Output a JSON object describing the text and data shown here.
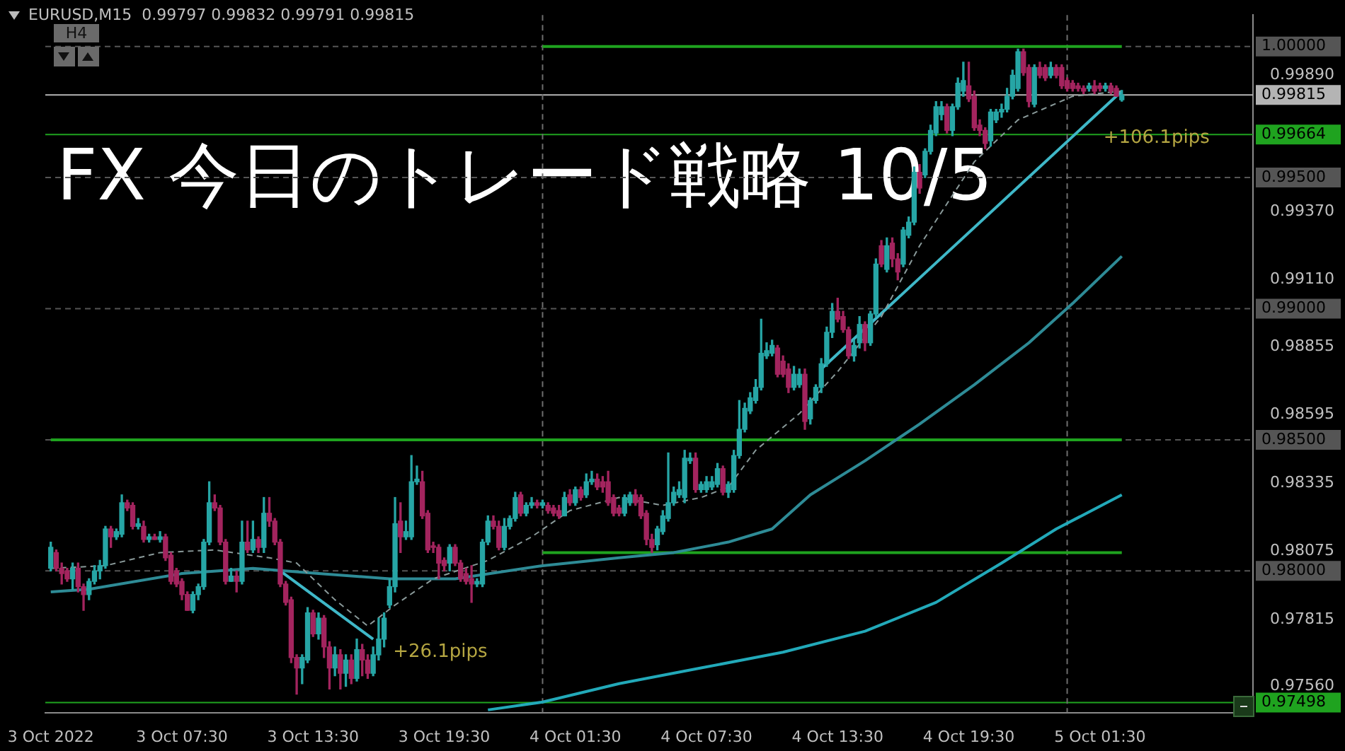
{
  "chart_data": {
    "type": "candlestick",
    "title": "FX 今日のトレード戦略 10/5",
    "subtitle": "EURUSD,M15  0.99797 0.99832 0.99791 0.99815",
    "x": [
      "2022-10-03T01:30",
      "2022-10-03T01:45",
      "2022-10-03T02:00",
      "2022-10-03T02:15",
      "2022-10-03T02:30",
      "2022-10-03T02:45",
      "2022-10-03T03:00",
      "2022-10-03T03:15",
      "2022-10-03T03:30",
      "2022-10-03T03:45",
      "2022-10-03T04:00",
      "2022-10-03T04:15",
      "2022-10-03T04:30",
      "2022-10-03T04:45",
      "2022-10-03T05:00",
      "2022-10-03T05:15",
      "2022-10-03T05:30",
      "2022-10-03T05:45",
      "2022-10-03T06:00",
      "2022-10-03T06:15",
      "2022-10-03T06:30",
      "2022-10-03T06:45",
      "2022-10-03T07:00",
      "2022-10-03T07:15",
      "2022-10-03T07:30",
      "2022-10-03T07:45",
      "2022-10-03T08:00",
      "2022-10-03T08:15",
      "2022-10-03T08:30",
      "2022-10-03T08:45",
      "2022-10-03T09:00",
      "2022-10-03T09:15",
      "2022-10-03T09:30",
      "2022-10-03T09:45",
      "2022-10-03T10:00",
      "2022-10-03T10:15",
      "2022-10-03T10:30",
      "2022-10-03T10:45",
      "2022-10-03T11:00",
      "2022-10-03T11:15",
      "2022-10-03T11:30",
      "2022-10-03T11:45",
      "2022-10-03T12:00",
      "2022-10-03T12:15",
      "2022-10-03T12:30",
      "2022-10-03T12:45",
      "2022-10-03T13:00",
      "2022-10-03T13:15",
      "2022-10-03T13:30",
      "2022-10-03T13:45",
      "2022-10-03T14:00",
      "2022-10-03T14:15",
      "2022-10-03T14:30",
      "2022-10-03T14:45",
      "2022-10-03T15:00",
      "2022-10-03T15:15",
      "2022-10-03T15:30",
      "2022-10-03T15:45",
      "2022-10-03T16:00",
      "2022-10-03T16:15",
      "2022-10-03T16:30",
      "2022-10-03T16:45",
      "2022-10-03T17:00",
      "2022-10-03T17:15",
      "2022-10-03T17:30",
      "2022-10-03T17:45",
      "2022-10-03T18:00",
      "2022-10-03T18:15",
      "2022-10-03T18:30",
      "2022-10-03T18:45",
      "2022-10-03T19:00",
      "2022-10-03T19:15",
      "2022-10-03T19:30",
      "2022-10-03T19:45",
      "2022-10-03T20:00",
      "2022-10-03T20:15",
      "2022-10-03T20:30",
      "2022-10-03T20:45",
      "2022-10-03T21:00",
      "2022-10-03T21:15",
      "2022-10-03T21:30",
      "2022-10-03T21:45",
      "2022-10-03T22:00",
      "2022-10-03T22:15",
      "2022-10-03T22:30",
      "2022-10-03T22:45",
      "2022-10-03T23:00",
      "2022-10-03T23:15",
      "2022-10-03T23:30",
      "2022-10-03T23:45",
      "2022-10-04T00:00",
      "2022-10-04T00:15",
      "2022-10-04T00:30",
      "2022-10-04T00:45",
      "2022-10-04T01:00",
      "2022-10-04T01:15",
      "2022-10-04T01:30",
      "2022-10-04T01:45",
      "2022-10-04T02:00",
      "2022-10-04T02:15",
      "2022-10-04T02:30",
      "2022-10-04T02:45",
      "2022-10-04T03:00",
      "2022-10-04T03:15",
      "2022-10-04T03:30",
      "2022-10-04T03:45",
      "2022-10-04T04:00",
      "2022-10-04T04:15",
      "2022-10-04T04:30",
      "2022-10-04T04:45",
      "2022-10-04T05:00",
      "2022-10-04T05:15",
      "2022-10-04T05:30",
      "2022-10-04T05:45",
      "2022-10-04T06:00",
      "2022-10-04T06:15",
      "2022-10-04T06:30",
      "2022-10-04T06:45",
      "2022-10-04T07:00",
      "2022-10-04T07:15",
      "2022-10-04T07:30",
      "2022-10-04T07:45",
      "2022-10-04T08:00",
      "2022-10-04T08:15",
      "2022-10-04T08:30",
      "2022-10-04T08:45",
      "2022-10-04T09:00",
      "2022-10-04T09:15",
      "2022-10-04T09:30",
      "2022-10-04T09:45",
      "2022-10-04T10:00",
      "2022-10-04T10:15",
      "2022-10-04T10:30",
      "2022-10-04T10:45",
      "2022-10-04T11:00",
      "2022-10-04T11:15",
      "2022-10-04T11:30",
      "2022-10-04T11:45",
      "2022-10-04T12:00",
      "2022-10-04T12:15",
      "2022-10-04T12:30",
      "2022-10-04T12:45",
      "2022-10-04T13:00",
      "2022-10-04T13:15",
      "2022-10-04T13:30",
      "2022-10-04T13:45",
      "2022-10-04T14:00",
      "2022-10-04T14:15",
      "2022-10-04T14:30",
      "2022-10-04T14:45",
      "2022-10-04T15:00",
      "2022-10-04T15:15",
      "2022-10-04T15:30",
      "2022-10-04T15:45",
      "2022-10-04T16:00",
      "2022-10-04T16:15",
      "2022-10-04T16:30",
      "2022-10-04T16:45",
      "2022-10-04T17:00",
      "2022-10-04T17:15",
      "2022-10-04T17:30",
      "2022-10-04T17:45",
      "2022-10-04T18:00",
      "2022-10-04T18:15",
      "2022-10-04T18:30",
      "2022-10-04T18:45",
      "2022-10-04T19:00",
      "2022-10-04T19:15",
      "2022-10-04T19:30",
      "2022-10-04T19:45",
      "2022-10-04T20:00",
      "2022-10-04T20:15",
      "2022-10-04T20:30",
      "2022-10-04T20:45",
      "2022-10-04T21:00",
      "2022-10-04T21:15",
      "2022-10-04T21:30",
      "2022-10-04T21:45",
      "2022-10-04T22:00",
      "2022-10-04T22:15",
      "2022-10-04T22:30",
      "2022-10-04T22:45",
      "2022-10-04T23:00",
      "2022-10-04T23:15",
      "2022-10-04T23:30",
      "2022-10-04T23:45",
      "2022-10-05T00:00",
      "2022-10-05T00:15",
      "2022-10-05T00:30",
      "2022-10-05T00:45",
      "2022-10-05T01:00",
      "2022-10-05T01:15",
      "2022-10-05T01:30",
      "2022-10-05T01:45",
      "2022-10-05T02:00",
      "2022-10-05T02:15",
      "2022-10-05T02:30"
    ],
    "ohlc": [
      [
        0.9801,
        0.9811,
        0.98,
        0.9809
      ],
      [
        0.9807,
        0.9808,
        0.98,
        0.9801
      ],
      [
        0.9801,
        0.9803,
        0.9795,
        0.9799
      ],
      [
        0.98,
        0.9801,
        0.9796,
        0.9797
      ],
      [
        0.9797,
        0.9803,
        0.9793,
        0.9801
      ],
      [
        0.9801,
        0.9803,
        0.9792,
        0.9794
      ],
      [
        0.9794,
        0.9795,
        0.9785,
        0.9791
      ],
      [
        0.9791,
        0.9797,
        0.9789,
        0.9796
      ],
      [
        0.9796,
        0.9802,
        0.9795,
        0.98
      ],
      [
        0.98,
        0.9804,
        0.9797,
        0.9802
      ],
      [
        0.9802,
        0.9817,
        0.9801,
        0.9816
      ],
      [
        0.9816,
        0.9817,
        0.9809,
        0.9813
      ],
      [
        0.9813,
        0.9816,
        0.9812,
        0.9815
      ],
      [
        0.9814,
        0.9829,
        0.9813,
        0.9826
      ],
      [
        0.9826,
        0.9827,
        0.9823,
        0.9824
      ],
      [
        0.9825,
        0.9826,
        0.9816,
        0.9817
      ],
      [
        0.9817,
        0.982,
        0.9816,
        0.9818
      ],
      [
        0.9817,
        0.9819,
        0.9811,
        0.9812
      ],
      [
        0.9812,
        0.9814,
        0.9811,
        0.9813
      ],
      [
        0.9813,
        0.9814,
        0.9812,
        0.9812
      ],
      [
        0.9812,
        0.9815,
        0.9811,
        0.9813
      ],
      [
        0.9813,
        0.9814,
        0.9804,
        0.9805
      ],
      [
        0.9806,
        0.9807,
        0.9795,
        0.9796
      ],
      [
        0.98,
        0.9801,
        0.9794,
        0.9795
      ],
      [
        0.9796,
        0.9797,
        0.9789,
        0.9791
      ],
      [
        0.9791,
        0.9792,
        0.9785,
        0.9785
      ],
      [
        0.9785,
        0.9792,
        0.9784,
        0.9791
      ],
      [
        0.9791,
        0.9795,
        0.9789,
        0.9794
      ],
      [
        0.9794,
        0.9812,
        0.9793,
        0.9811
      ],
      [
        0.9811,
        0.9834,
        0.981,
        0.9826
      ],
      [
        0.9826,
        0.9829,
        0.9823,
        0.9824
      ],
      [
        0.9824,
        0.9825,
        0.981,
        0.9811
      ],
      [
        0.9811,
        0.9812,
        0.9795,
        0.9796
      ],
      [
        0.9796,
        0.9801,
        0.9796,
        0.9798
      ],
      [
        0.9798,
        0.98,
        0.9792,
        0.9796
      ],
      [
        0.9796,
        0.9819,
        0.9795,
        0.9811
      ],
      [
        0.9811,
        0.9819,
        0.9807,
        0.9808
      ],
      [
        0.9808,
        0.9819,
        0.9807,
        0.9812
      ],
      [
        0.9812,
        0.9813,
        0.9807,
        0.9809
      ],
      [
        0.9809,
        0.9828,
        0.9807,
        0.9822
      ],
      [
        0.9822,
        0.9828,
        0.9817,
        0.9819
      ],
      [
        0.9819,
        0.982,
        0.981,
        0.9811
      ],
      [
        0.9811,
        0.9812,
        0.9794,
        0.9795
      ],
      [
        0.9795,
        0.9796,
        0.9787,
        0.9788
      ],
      [
        0.9789,
        0.979,
        0.9765,
        0.9767
      ],
      [
        0.9767,
        0.9768,
        0.9753,
        0.9763
      ],
      [
        0.9763,
        0.9768,
        0.9757,
        0.9767
      ],
      [
        0.9766,
        0.9786,
        0.9765,
        0.9784
      ],
      [
        0.9784,
        0.9785,
        0.9775,
        0.9776
      ],
      [
        0.9776,
        0.9784,
        0.9774,
        0.9782
      ],
      [
        0.9782,
        0.9783,
        0.9767,
        0.9771
      ],
      [
        0.9771,
        0.9773,
        0.9755,
        0.9763
      ],
      [
        0.9763,
        0.9771,
        0.976,
        0.9768
      ],
      [
        0.9768,
        0.977,
        0.9755,
        0.9761
      ],
      [
        0.9761,
        0.9768,
        0.9756,
        0.9766
      ],
      [
        0.9766,
        0.9768,
        0.9757,
        0.9759
      ],
      [
        0.9759,
        0.9774,
        0.9758,
        0.977
      ],
      [
        0.977,
        0.9772,
        0.976,
        0.9766
      ],
      [
        0.9766,
        0.9768,
        0.9759,
        0.9761
      ],
      [
        0.9761,
        0.9771,
        0.976,
        0.9768
      ],
      [
        0.9768,
        0.9782,
        0.9766,
        0.9774
      ],
      [
        0.9774,
        0.9784,
        0.9771,
        0.9782
      ],
      [
        0.9787,
        0.9797,
        0.9786,
        0.9794
      ],
      [
        0.9794,
        0.9828,
        0.9792,
        0.9818
      ],
      [
        0.9819,
        0.9826,
        0.9807,
        0.9813
      ],
      [
        0.9813,
        0.9819,
        0.9812,
        0.9815
      ],
      [
        0.9813,
        0.9844,
        0.9812,
        0.9834
      ],
      [
        0.9834,
        0.984,
        0.9833,
        0.9835
      ],
      [
        0.9834,
        0.9838,
        0.982,
        0.9821
      ],
      [
        0.9822,
        0.9823,
        0.9807,
        0.9808
      ],
      [
        0.9809,
        0.9811,
        0.9807,
        0.9809
      ],
      [
        0.9809,
        0.981,
        0.9797,
        0.9803
      ],
      [
        0.9804,
        0.9805,
        0.98,
        0.9802
      ],
      [
        0.9803,
        0.981,
        0.98,
        0.9809
      ],
      [
        0.9809,
        0.981,
        0.9802,
        0.9803
      ],
      [
        0.9803,
        0.9804,
        0.9796,
        0.9797
      ],
      [
        0.9799,
        0.9801,
        0.9795,
        0.9796
      ],
      [
        0.9797,
        0.9802,
        0.9788,
        0.9795
      ],
      [
        0.9795,
        0.9797,
        0.9794,
        0.9796
      ],
      [
        0.9795,
        0.9812,
        0.9794,
        0.9811
      ],
      [
        0.9811,
        0.9821,
        0.981,
        0.9819
      ],
      [
        0.9819,
        0.9821,
        0.9816,
        0.9817
      ],
      [
        0.9817,
        0.9819,
        0.9808,
        0.9809
      ],
      [
        0.9809,
        0.982,
        0.9808,
        0.9817
      ],
      [
        0.9817,
        0.9821,
        0.9816,
        0.982
      ],
      [
        0.982,
        0.983,
        0.9819,
        0.9828
      ],
      [
        0.9829,
        0.983,
        0.9821,
        0.9822
      ],
      [
        0.9822,
        0.9826,
        0.9821,
        0.9825
      ],
      [
        0.9825,
        0.9828,
        0.9824,
        0.9826
      ],
      [
        0.9826,
        0.9827,
        0.9824,
        0.9825
      ],
      [
        0.9825,
        0.9827,
        0.9824,
        0.9826
      ],
      [
        0.9825,
        0.9826,
        0.9822,
        0.9823
      ],
      [
        0.9824,
        0.9825,
        0.9821,
        0.9822
      ],
      [
        0.9823,
        0.9825,
        0.982,
        0.9821
      ],
      [
        0.9821,
        0.983,
        0.9821,
        0.9828
      ],
      [
        0.9829,
        0.9831,
        0.9825,
        0.9826
      ],
      [
        0.9826,
        0.9832,
        0.9825,
        0.9831
      ],
      [
        0.9831,
        0.9832,
        0.9827,
        0.9828
      ],
      [
        0.9829,
        0.9837,
        0.9828,
        0.9834
      ],
      [
        0.9834,
        0.9838,
        0.9833,
        0.9835
      ],
      [
        0.9835,
        0.9837,
        0.9831,
        0.9832
      ],
      [
        0.9834,
        0.9836,
        0.983,
        0.9832
      ],
      [
        0.9834,
        0.9838,
        0.9825,
        0.9826
      ],
      [
        0.9828,
        0.9829,
        0.9821,
        0.9822
      ],
      [
        0.9824,
        0.9825,
        0.9821,
        0.9822
      ],
      [
        0.9822,
        0.9829,
        0.9821,
        0.9828
      ],
      [
        0.9826,
        0.983,
        0.9825,
        0.9829
      ],
      [
        0.9829,
        0.9831,
        0.9825,
        0.9826
      ],
      [
        0.9828,
        0.9829,
        0.982,
        0.9821
      ],
      [
        0.9822,
        0.9823,
        0.981,
        0.9812
      ],
      [
        0.9812,
        0.9814,
        0.9807,
        0.9809
      ],
      [
        0.981,
        0.9817,
        0.9808,
        0.9816
      ],
      [
        0.9815,
        0.9823,
        0.9814,
        0.9821
      ],
      [
        0.982,
        0.9845,
        0.9819,
        0.9826
      ],
      [
        0.9826,
        0.9832,
        0.9825,
        0.983
      ],
      [
        0.9829,
        0.9834,
        0.9828,
        0.9831
      ],
      [
        0.9828,
        0.9846,
        0.9826,
        0.9843
      ],
      [
        0.9842,
        0.9845,
        0.9841,
        0.9843
      ],
      [
        0.9843,
        0.9845,
        0.983,
        0.9831
      ],
      [
        0.9831,
        0.9834,
        0.983,
        0.9833
      ],
      [
        0.9831,
        0.9836,
        0.983,
        0.9834
      ],
      [
        0.9832,
        0.9836,
        0.9831,
        0.9834
      ],
      [
        0.9833,
        0.9841,
        0.9832,
        0.9839
      ],
      [
        0.9839,
        0.984,
        0.9829,
        0.983
      ],
      [
        0.983,
        0.9834,
        0.9828,
        0.9833
      ],
      [
        0.9831,
        0.9846,
        0.983,
        0.9844
      ],
      [
        0.9844,
        0.9865,
        0.9843,
        0.9854
      ],
      [
        0.9854,
        0.9864,
        0.9853,
        0.9862
      ],
      [
        0.9861,
        0.9868,
        0.986,
        0.9866
      ],
      [
        0.9865,
        0.9873,
        0.9864,
        0.987
      ],
      [
        0.987,
        0.9896,
        0.9869,
        0.9883
      ],
      [
        0.9882,
        0.9887,
        0.9881,
        0.9884
      ],
      [
        0.9883,
        0.9888,
        0.9882,
        0.9886
      ],
      [
        0.9885,
        0.9886,
        0.9874,
        0.9875
      ],
      [
        0.988,
        0.9882,
        0.9874,
        0.9875
      ],
      [
        0.9877,
        0.9879,
        0.9868,
        0.987
      ],
      [
        0.987,
        0.9878,
        0.9869,
        0.9875
      ],
      [
        0.9871,
        0.9877,
        0.987,
        0.9875
      ],
      [
        0.9875,
        0.9877,
        0.9854,
        0.9857
      ],
      [
        0.9858,
        0.9866,
        0.9856,
        0.9865
      ],
      [
        0.9865,
        0.9871,
        0.9864,
        0.987
      ],
      [
        0.987,
        0.9881,
        0.9868,
        0.9879
      ],
      [
        0.9879,
        0.9893,
        0.9878,
        0.9891
      ],
      [
        0.9891,
        0.9902,
        0.9889,
        0.9899
      ],
      [
        0.9899,
        0.9904,
        0.9895,
        0.9896
      ],
      [
        0.9897,
        0.9899,
        0.9891,
        0.9892
      ],
      [
        0.9892,
        0.9893,
        0.9881,
        0.9882
      ],
      [
        0.9882,
        0.9888,
        0.988,
        0.9886
      ],
      [
        0.9887,
        0.9897,
        0.9885,
        0.9894
      ],
      [
        0.9894,
        0.9895,
        0.9884,
        0.9887
      ],
      [
        0.9887,
        0.9899,
        0.9886,
        0.9898
      ],
      [
        0.9898,
        0.9919,
        0.9897,
        0.9917
      ],
      [
        0.9924,
        0.9926,
        0.9916,
        0.9917
      ],
      [
        0.9915,
        0.9927,
        0.9914,
        0.9924
      ],
      [
        0.9925,
        0.9927,
        0.9916,
        0.9919
      ],
      [
        0.9919,
        0.9921,
        0.9911,
        0.9914
      ],
      [
        0.9917,
        0.9931,
        0.9916,
        0.993
      ],
      [
        0.9928,
        0.9935,
        0.9927,
        0.9933
      ],
      [
        0.9933,
        0.9954,
        0.9932,
        0.9952
      ],
      [
        0.9952,
        0.9955,
        0.9944,
        0.9946
      ],
      [
        0.9951,
        0.9961,
        0.995,
        0.996
      ],
      [
        0.996,
        0.997,
        0.9959,
        0.9968
      ],
      [
        0.9967,
        0.9979,
        0.9966,
        0.9977
      ],
      [
        0.9974,
        0.9979,
        0.9972,
        0.9977
      ],
      [
        0.9977,
        0.9978,
        0.9967,
        0.9968
      ],
      [
        0.9968,
        0.9978,
        0.9966,
        0.9977
      ],
      [
        0.9977,
        0.9988,
        0.9976,
        0.9986
      ],
      [
        0.9983,
        0.9994,
        0.9981,
        0.9987
      ],
      [
        0.9985,
        0.9994,
        0.9979,
        0.998
      ],
      [
        0.9981,
        0.9983,
        0.9968,
        0.9969
      ],
      [
        0.997,
        0.9972,
        0.9966,
        0.9968
      ],
      [
        0.9968,
        0.9969,
        0.9961,
        0.9963
      ],
      [
        0.9964,
        0.9976,
        0.9962,
        0.9975
      ],
      [
        0.9972,
        0.9976,
        0.9971,
        0.9975
      ],
      [
        0.9975,
        0.9978,
        0.9973,
        0.9976
      ],
      [
        0.9976,
        0.9984,
        0.9975,
        0.9981
      ],
      [
        0.9981,
        0.9991,
        0.998,
        0.9989
      ],
      [
        0.9984,
        0.9999,
        0.9983,
        0.9998
      ],
      [
        0.9998,
        0.9999,
        0.9989,
        0.999
      ],
      [
        0.9992,
        0.9993,
        0.9977,
        0.9979
      ],
      [
        0.9978,
        0.9993,
        0.9977,
        0.9992
      ],
      [
        0.9992,
        0.9994,
        0.9988,
        0.9989
      ],
      [
        0.9992,
        0.9993,
        0.9987,
        0.9988
      ],
      [
        0.9989,
        0.9994,
        0.9988,
        0.9992
      ],
      [
        0.9992,
        0.9993,
        0.9988,
        0.9989
      ],
      [
        0.9992,
        0.9993,
        0.9984,
        0.9985
      ],
      [
        0.9987,
        0.9988,
        0.9983,
        0.9984
      ],
      [
        0.9986,
        0.9987,
        0.9983,
        0.9984
      ],
      [
        0.9985,
        0.9986,
        0.9983,
        0.9984
      ],
      [
        0.9984,
        0.9985,
        0.9982,
        0.9983
      ],
      [
        0.9984,
        0.9986,
        0.9983,
        0.9985
      ],
      [
        0.9985,
        0.9987,
        0.9982,
        0.9983
      ],
      [
        0.9985,
        0.9986,
        0.9983,
        0.9984
      ],
      [
        0.9984,
        0.9986,
        0.9983,
        0.9985
      ],
      [
        0.9985,
        0.9986,
        0.9982,
        0.9983
      ],
      [
        0.9984,
        0.9985,
        0.9981,
        0.9981
      ],
      [
        0.99797,
        0.99832,
        0.99791,
        0.99815
      ]
    ],
    "colors": [
      "#26a5a5",
      "#a3245e",
      "#a3245e",
      "#a3245e",
      "#26a5a5",
      "#a3245e",
      "#a3245e",
      "#26a5a5",
      "#26a5a5",
      "#26a5a5",
      "#26a5a5",
      "#a3245e",
      "#26a5a5",
      "#26a5a5",
      "#a3245e",
      "#a3245e",
      "#26a5a5",
      "#a3245e",
      "#26a5a5",
      "#a3245e",
      "#26a5a5",
      "#a3245e",
      "#a3245e",
      "#a3245e",
      "#a3245e",
      "#a3245e",
      "#26a5a5",
      "#26a5a5",
      "#26a5a5",
      "#26a5a5",
      "#a3245e",
      "#a3245e",
      "#a3245e",
      "#26a5a5",
      "#a3245e",
      "#26a5a5",
      "#a3245e",
      "#26a5a5",
      "#a3245e",
      "#26a5a5",
      "#a3245e",
      "#a3245e",
      "#a3245e",
      "#a3245e",
      "#a3245e",
      "#a3245e",
      "#26a5a5",
      "#26a5a5",
      "#a3245e",
      "#26a5a5",
      "#a3245e",
      "#a3245e",
      "#26a5a5",
      "#a3245e",
      "#26a5a5",
      "#a3245e",
      "#26a5a5",
      "#a3245e",
      "#a3245e",
      "#26a5a5",
      "#26a5a5",
      "#26a5a5",
      "#26a5a5",
      "#26a5a5",
      "#a3245e",
      "#26a5a5",
      "#26a5a5",
      "#26a5a5",
      "#a3245e",
      "#a3245e",
      "#a3245e",
      "#a3245e",
      "#a3245e",
      "#26a5a5",
      "#a3245e",
      "#a3245e",
      "#a3245e",
      "#a3245e",
      "#26a5a5",
      "#26a5a5",
      "#26a5a5",
      "#a3245e",
      "#a3245e",
      "#26a5a5",
      "#26a5a5",
      "#26a5a5",
      "#a3245e",
      "#26a5a5",
      "#26a5a5",
      "#a3245e",
      "#26a5a5",
      "#a3245e",
      "#a3245e",
      "#a3245e",
      "#26a5a5",
      "#a3245e",
      "#26a5a5",
      "#a3245e",
      "#26a5a5",
      "#26a5a5",
      "#a3245e",
      "#a3245e",
      "#a3245e",
      "#a3245e",
      "#a3245e",
      "#26a5a5",
      "#26a5a5",
      "#a3245e",
      "#a3245e",
      "#a3245e",
      "#a3245e",
      "#26a5a5",
      "#26a5a5",
      "#26a5a5",
      "#26a5a5",
      "#26a5a5",
      "#26a5a5",
      "#26a5a5",
      "#a3245e",
      "#26a5a5",
      "#26a5a5",
      "#26a5a5",
      "#26a5a5",
      "#a3245e",
      "#26a5a5",
      "#26a5a5",
      "#26a5a5",
      "#26a5a5",
      "#26a5a5",
      "#26a5a5",
      "#26a5a5",
      "#26a5a5",
      "#26a5a5",
      "#a3245e",
      "#a3245e",
      "#a3245e",
      "#26a5a5",
      "#26a5a5",
      "#a3245e",
      "#26a5a5",
      "#26a5a5",
      "#26a5a5",
      "#26a5a5",
      "#26a5a5",
      "#a3245e",
      "#a3245e",
      "#a3245e",
      "#26a5a5",
      "#26a5a5",
      "#a3245e",
      "#26a5a5",
      "#26a5a5",
      "#a3245e",
      "#26a5a5",
      "#a3245e",
      "#a3245e",
      "#26a5a5",
      "#26a5a5",
      "#26a5a5",
      "#a3245e",
      "#26a5a5",
      "#26a5a5",
      "#26a5a5",
      "#26a5a5",
      "#a3245e",
      "#26a5a5",
      "#26a5a5",
      "#26a5a5",
      "#a3245e",
      "#a3245e",
      "#a3245e",
      "#a3245e",
      "#26a5a5",
      "#26a5a5",
      "#26a5a5",
      "#26a5a5",
      "#26a5a5",
      "#26a5a5",
      "#a3245e",
      "#a3245e",
      "#26a5a5",
      "#a3245e",
      "#a3245e",
      "#26a5a5",
      "#a3245e",
      "#a3245e",
      "#a3245e",
      "#a3245e",
      "#a3245e",
      "#a3245e",
      "#26a5a5",
      "#a3245e",
      "#a3245e",
      "#26a5a5",
      "#a3245e",
      "#a3245e",
      "#26a5a5"
    ],
    "series": [
      {
        "type": "line",
        "color": "#8a9a9a",
        "line_style": "dashed",
        "x": [
          "2022-10-03T01:30",
          "2022-10-03T04:00",
          "2022-10-03T06:30",
          "2022-10-03T09:00",
          "2022-10-03T11:30",
          "2022-10-03T12:45",
          "2022-10-03T14:30",
          "2022-10-03T16:00",
          "2022-10-03T17:15",
          "2022-10-03T19:00",
          "2022-10-03T21:30",
          "2022-10-03T23:30",
          "2022-10-04T01:15",
          "2022-10-04T03:30",
          "2022-10-04T05:30",
          "2022-10-04T07:15",
          "2022-10-04T08:30",
          "2022-10-04T09:45",
          "2022-10-04T11:45",
          "2022-10-04T13:30",
          "2022-10-04T15:30",
          "2022-10-04T17:15",
          "2022-10-04T19:45",
          "2022-10-04T21:45",
          "2022-10-05T00:15",
          "2022-10-05T02:30"
        ],
        "values": [
          0.9801,
          0.9802,
          0.9807,
          0.9808,
          0.9805,
          0.9803,
          0.9789,
          0.9779,
          0.9787,
          0.9797,
          0.9804,
          0.9813,
          0.9823,
          0.9828,
          0.9825,
          0.9828,
          0.9832,
          0.9846,
          0.986,
          0.9876,
          0.9897,
          0.9924,
          0.9956,
          0.9972,
          0.9981,
          0.9983
        ]
      },
      {
        "type": "line",
        "color": "#2e8b96",
        "line_style": "solid",
        "x": [
          "2022-10-03T01:30",
          "2022-10-03T03:15",
          "2022-10-03T07:30",
          "2022-10-03T10:45",
          "2022-10-03T13:45",
          "2022-10-03T17:00",
          "2022-10-03T20:00",
          "2022-10-04T00:00",
          "2022-10-04T03:30",
          "2022-10-04T06:00",
          "2022-10-04T08:30",
          "2022-10-04T10:30",
          "2022-10-04T12:15",
          "2022-10-04T14:45",
          "2022-10-04T17:15",
          "2022-10-04T19:45",
          "2022-10-04T22:15",
          "2022-10-05T00:15",
          "2022-10-05T02:30"
        ],
        "values": [
          0.9792,
          0.9793,
          0.9799,
          0.9801,
          0.9799,
          0.9797,
          0.9797,
          0.9802,
          0.9805,
          0.9807,
          0.9811,
          0.9816,
          0.9829,
          0.9842,
          0.9856,
          0.9871,
          0.9887,
          0.9902,
          0.992
        ]
      },
      {
        "type": "line",
        "color": "#22a9b9",
        "line_style": "solid",
        "x": [
          "2022-10-03T21:30",
          "2022-10-04T00:00",
          "2022-10-04T03:30",
          "2022-10-04T07:15",
          "2022-10-04T11:00",
          "2022-10-04T14:45",
          "2022-10-04T18:00",
          "2022-10-04T21:00",
          "2022-10-04T23:30",
          "2022-10-05T02:30"
        ],
        "values": [
          0.9747,
          0.975,
          0.9757,
          0.9763,
          0.9769,
          0.9777,
          0.9788,
          0.9803,
          0.9816,
          0.9829
        ]
      },
      {
        "type": "line",
        "color": "#3fb8c8",
        "line_style": "solid",
        "x": [
          "2022-10-03T12:00",
          "2022-10-03T16:15"
        ],
        "values": [
          0.98,
          0.9774
        ]
      },
      {
        "type": "line",
        "color": "#3fb8c8",
        "line_style": "solid",
        "x": [
          "2022-10-04T12:45",
          "2022-10-05T02:30"
        ],
        "values": [
          0.9877,
          0.9983
        ]
      },
      {
        "type": "line",
        "color": "#1fa31f",
        "line_style": "solid",
        "x": [
          "2022-10-04T00:00",
          "2022-10-05T02:30"
        ],
        "values": [
          1.0,
          1.0
        ]
      },
      {
        "type": "line",
        "color": "#1fa31f",
        "line_style": "solid",
        "x": [
          "2022-10-03T01:30",
          "2022-10-05T02:30"
        ],
        "values": [
          0.985,
          0.985
        ]
      },
      {
        "type": "line",
        "color": "#1fa31f",
        "line_style": "solid",
        "x": [
          "2022-10-04T00:00",
          "2022-10-05T02:30"
        ],
        "values": [
          0.9807,
          0.9807
        ]
      }
    ],
    "xlim": [
      "2022-10-03T01:15",
      "2022-10-05T08:30"
    ],
    "xticks": [
      {
        "value": "2022-10-03T01:30",
        "label": "3 Oct 2022"
      },
      {
        "value": "2022-10-03T07:30",
        "label": "3 Oct 07:30"
      },
      {
        "value": "2022-10-03T13:30",
        "label": "3 Oct 13:30"
      },
      {
        "value": "2022-10-03T19:30",
        "label": "3 Oct 19:30"
      },
      {
        "value": "2022-10-04T01:30",
        "label": "4 Oct 01:30"
      },
      {
        "value": "2022-10-04T07:30",
        "label": "4 Oct 07:30"
      },
      {
        "value": "2022-10-04T13:30",
        "label": "4 Oct 13:30"
      },
      {
        "value": "2022-10-04T19:30",
        "label": "4 Oct 19:30"
      },
      {
        "value": "2022-10-05T01:30",
        "label": "5 Oct 01:30"
      }
    ],
    "ylim": [
      0.9746,
      1.0012
    ],
    "yticks": [
      {
        "value": 0.9989,
        "label": "0.99890"
      },
      {
        "value": 0.9937,
        "label": "0.99370"
      },
      {
        "value": 0.9911,
        "label": "0.99110"
      },
      {
        "value": 0.98855,
        "label": "0.98855"
      },
      {
        "value": 0.98595,
        "label": "0.98595"
      },
      {
        "value": 0.98335,
        "label": "0.98335"
      },
      {
        "value": 0.98075,
        "label": "0.98075"
      },
      {
        "value": 0.97815,
        "label": "0.97815"
      },
      {
        "value": 0.9756,
        "label": "0.97560"
      }
    ],
    "ref_lines": [
      {
        "axis": "y",
        "value": 1.0,
        "label": "1.00000",
        "color": "#555555",
        "line_style": "dashed"
      },
      {
        "axis": "y",
        "value": 0.995,
        "label": "0.99500",
        "color": "#555555",
        "line_style": "dashed"
      },
      {
        "axis": "y",
        "value": 0.99,
        "label": "0.99000",
        "color": "#555555",
        "line_style": "dashed"
      },
      {
        "axis": "y",
        "value": 0.985,
        "label": "0.98500",
        "color": "#555555",
        "line_style": "dashed"
      },
      {
        "axis": "y",
        "value": 0.98,
        "label": "0.98000",
        "color": "#555555",
        "line_style": "dashed"
      },
      {
        "axis": "y",
        "value": 0.99815,
        "label": "0.99815",
        "color": "#b4b4b4",
        "line_style": "solid"
      },
      {
        "axis": "y",
        "value": 0.99664,
        "label": "0.99664",
        "color": "#1fa31f",
        "line_style": "solid"
      },
      {
        "axis": "y",
        "value": 0.97498,
        "label": "0.97498",
        "color": "#1fa31f",
        "line_style": "solid"
      },
      {
        "axis": "x",
        "value": "2022-10-04T00:00",
        "color": "#6e6e6e",
        "line_style": "dashed"
      },
      {
        "axis": "x",
        "value": "2022-10-05T00:00",
        "color": "#6e6e6e",
        "line_style": "dashed"
      }
    ],
    "annotations": [
      "H4",
      {
        "text": "+26.1pips",
        "x": "2022-10-03T16:15",
        "y": 0.9774
      },
      {
        "text": "+106.1pips",
        "x": "2022-10-05T00:45",
        "y": 0.997
      }
    ]
  }
}
